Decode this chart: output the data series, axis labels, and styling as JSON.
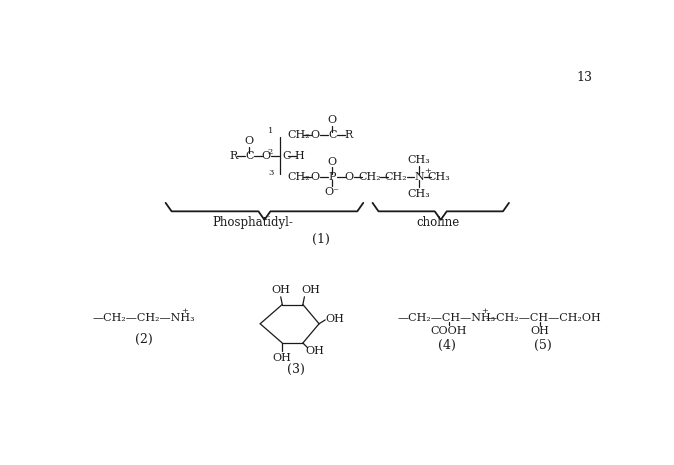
{
  "bg_color": "#ffffff",
  "text_color": "#1a1a1a",
  "page_number": "13",
  "title1": "Phosphatidyl-",
  "title2": "choline",
  "label1": "(1)",
  "label2": "(2)",
  "label3": "(3)",
  "label4": "(4)",
  "label5": "(5)"
}
